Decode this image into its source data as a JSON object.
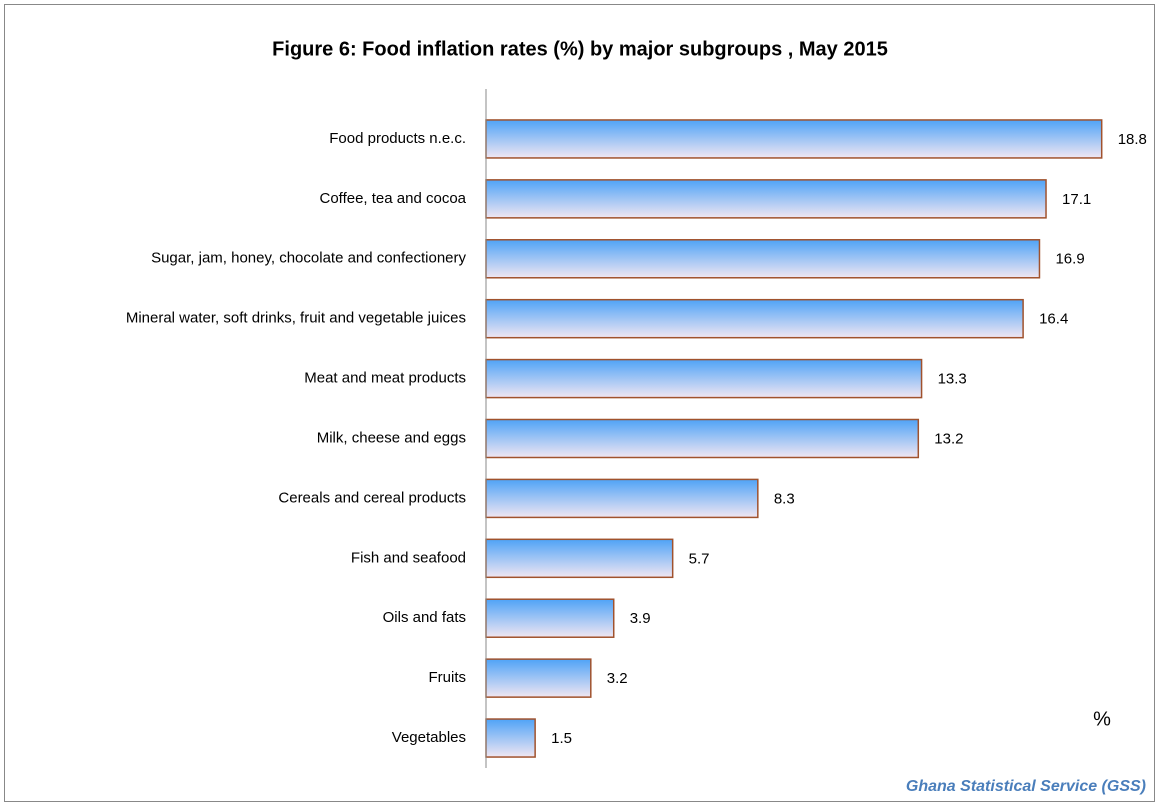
{
  "chart_data": {
    "type": "bar",
    "orientation": "horizontal",
    "title": "Figure 6: Food inflation rates (%) by  major subgroups , May 2015",
    "annotation": "%",
    "source": "Ghana Statistical Service (GSS)",
    "categories": [
      "Food products n.e.c.",
      "Coffee, tea and cocoa",
      "Sugar, jam, honey, chocolate and confectionery",
      "Mineral water, soft drinks, fruit and vegetable juices",
      "Meat and meat products",
      "Milk, cheese and eggs",
      "Cereals and cereal products",
      "Fish and seafood",
      "Oils and fats",
      "Fruits",
      "Vegetables"
    ],
    "values": [
      18.8,
      17.1,
      16.9,
      16.4,
      13.3,
      13.2,
      8.3,
      5.7,
      3.9,
      3.2,
      1.5
    ],
    "color": "#a0522d",
    "xlim": [
      0,
      20
    ]
  }
}
